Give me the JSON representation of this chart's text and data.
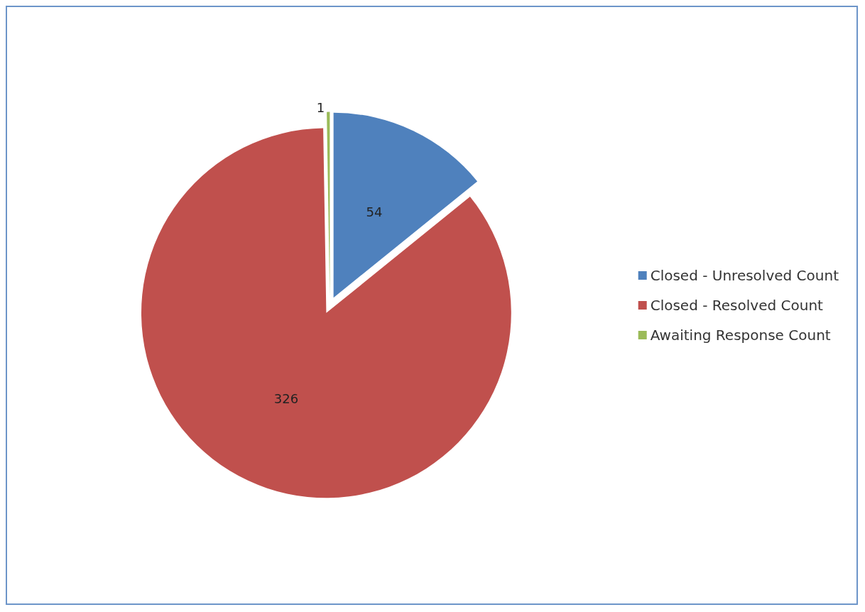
{
  "chart_data": {
    "type": "pie",
    "categories": [
      "Closed - Unresolved Count",
      "Closed - Resolved Count",
      "Awaiting Response Count"
    ],
    "values": [
      54,
      326,
      1
    ],
    "colors": [
      "#4f81bd",
      "#c0504d",
      "#9bbb59"
    ],
    "data_labels": true,
    "legend": "right"
  }
}
